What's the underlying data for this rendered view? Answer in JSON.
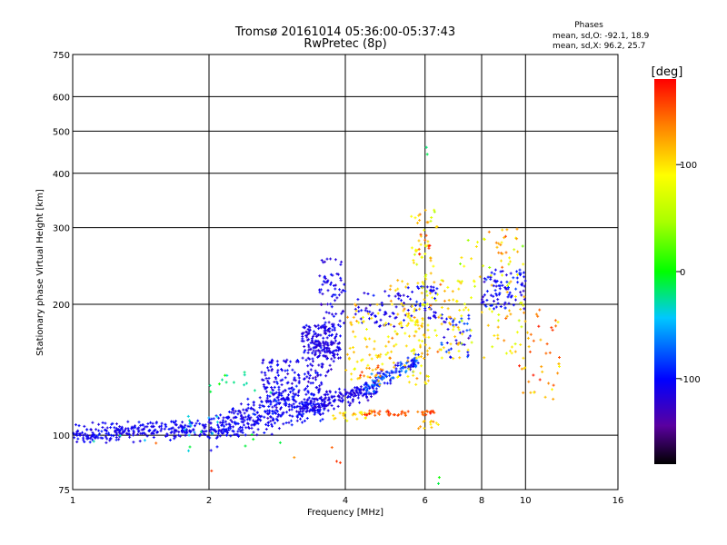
{
  "chart_data": {
    "type": "scatter",
    "title": "Tromsø 20161014 05:36:00-05:37:43",
    "subtitle": "RwPretec (8p)",
    "xlabel": "Frequency [MHz]",
    "ylabel": "Stationary phase Virtual Height [km]",
    "xscale": "log2",
    "yscale": "log",
    "xlim": [
      1,
      16
    ],
    "ylim": [
      75,
      750
    ],
    "x_ticks": [
      1,
      2,
      4,
      6,
      8,
      10,
      16
    ],
    "x_tick_labels": [
      "1",
      "2",
      "4",
      "6",
      "8",
      "10",
      "16"
    ],
    "y_ticks": [
      75,
      100,
      200,
      300,
      400,
      500,
      600,
      750
    ],
    "y_tick_labels": [
      "75",
      "100",
      "200",
      "300",
      "400",
      "500",
      "600",
      "750"
    ],
    "grid": true,
    "phase_legend": {
      "title": "Phases",
      "line_o": "mean, sd,O: -92.1, 18.9",
      "line_x": "mean, sd,X:  96.2, 25.7"
    },
    "colorbar": {
      "label": "[deg]",
      "range": [
        -180,
        180
      ],
      "tick_values": [
        100,
        0,
        -100
      ],
      "tick_labels": [
        "100",
        "0",
        "-100"
      ]
    },
    "clusters": [
      {
        "kind": "band",
        "x": [
          1.0,
          2.0
        ],
        "y": [
          100,
          104
        ],
        "spread": 0.035,
        "phase": -108,
        "phase_sd": 10,
        "count": 260
      },
      {
        "kind": "band",
        "x": [
          2.0,
          3.3
        ],
        "y": [
          102,
          116
        ],
        "spread": 0.05,
        "phase": -108,
        "phase_sd": 12,
        "count": 240
      },
      {
        "kind": "band",
        "x": [
          2.6,
          3.6
        ],
        "y": [
          132,
          112
        ],
        "spread": 0.035,
        "phase": -105,
        "phase_sd": 10,
        "count": 70
      },
      {
        "kind": "band",
        "x": [
          2.1,
          2.9
        ],
        "y": [
          108,
          122
        ],
        "spread": 0.04,
        "phase": -105,
        "phase_sd": 12,
        "count": 60
      },
      {
        "kind": "band",
        "x": [
          3.2,
          4.7
        ],
        "y": [
          115,
          128
        ],
        "spread": 0.03,
        "phase": -112,
        "phase_sd": 10,
        "count": 170
      },
      {
        "kind": "band",
        "x": [
          4.4,
          5.8
        ],
        "y": [
          128,
          148
        ],
        "spread": 0.03,
        "phase": -90,
        "phase_sd": 25,
        "count": 130
      },
      {
        "kind": "blob",
        "x": [
          2.6,
          3.7
        ],
        "y": [
          120,
          150
        ],
        "phase": -110,
        "phase_sd": 12,
        "count": 150
      },
      {
        "kind": "blob",
        "x": [
          3.2,
          3.9
        ],
        "y": [
          150,
          180
        ],
        "phase": -112,
        "phase_sd": 10,
        "count": 140
      },
      {
        "kind": "blob",
        "x": [
          3.5,
          4.0
        ],
        "y": [
          175,
          235
        ],
        "phase": -110,
        "phase_sd": 12,
        "count": 60
      },
      {
        "kind": "blob",
        "x": [
          3.3,
          3.8
        ],
        "y": [
          140,
          165
        ],
        "phase": -115,
        "phase_sd": 8,
        "count": 50
      },
      {
        "kind": "blob",
        "x": [
          4.2,
          5.5
        ],
        "y": [
          175,
          215
        ],
        "phase": -110,
        "phase_sd": 12,
        "count": 60
      },
      {
        "kind": "blob",
        "x": [
          5.5,
          6.4
        ],
        "y": [
          185,
          220
        ],
        "phase": -105,
        "phase_sd": 15,
        "count": 40
      },
      {
        "kind": "blob",
        "x": [
          6.5,
          7.6
        ],
        "y": [
          150,
          190
        ],
        "phase": -100,
        "phase_sd": 20,
        "count": 40
      },
      {
        "kind": "blob",
        "x": [
          8.0,
          10.0
        ],
        "y": [
          195,
          240
        ],
        "phase": -105,
        "phase_sd": 15,
        "count": 90
      },
      {
        "kind": "blob",
        "x": [
          3.4,
          4.0
        ],
        "y": [
          245,
          255
        ],
        "phase": -110,
        "phase_sd": 8,
        "count": 8
      },
      {
        "kind": "blob",
        "x": [
          1.75,
          2.1
        ],
        "y": [
          100,
          112
        ],
        "phase": -40,
        "phase_sd": 15,
        "count": 12
      },
      {
        "kind": "blob",
        "x": [
          2.0,
          2.8
        ],
        "y": [
          125,
          140
        ],
        "phase": -25,
        "phase_sd": 20,
        "count": 14
      },
      {
        "kind": "blob",
        "x": [
          4.0,
          6.2
        ],
        "y": [
          130,
          200
        ],
        "phase": 100,
        "phase_sd": 20,
        "count": 120
      },
      {
        "kind": "blob",
        "x": [
          5.0,
          7.2
        ],
        "y": [
          150,
          230
        ],
        "phase": 105,
        "phase_sd": 25,
        "count": 110
      },
      {
        "kind": "blob",
        "x": [
          5.5,
          6.4
        ],
        "y": [
          230,
          330
        ],
        "phase": 95,
        "phase_sd": 30,
        "count": 40
      },
      {
        "kind": "blob",
        "x": [
          7.0,
          10.0
        ],
        "y": [
          150,
          300
        ],
        "phase": 90,
        "phase_sd": 35,
        "count": 90
      },
      {
        "kind": "blob",
        "x": [
          9.5,
          12.0
        ],
        "y": [
          120,
          200
        ],
        "phase": 130,
        "phase_sd": 30,
        "count": 45
      },
      {
        "kind": "blob",
        "x": [
          3.7,
          4.6
        ],
        "y": [
          107,
          114
        ],
        "phase": 100,
        "phase_sd": 15,
        "count": 25
      },
      {
        "kind": "blob",
        "x": [
          4.4,
          6.3
        ],
        "y": [
          111,
          114
        ],
        "phase": 155,
        "phase_sd": 15,
        "count": 45
      },
      {
        "kind": "blob",
        "x": [
          5.8,
          6.5
        ],
        "y": [
          103,
          108
        ],
        "phase": 110,
        "phase_sd": 20,
        "count": 12
      },
      {
        "kind": "blob",
        "x": [
          4.1,
          4.9
        ],
        "y": [
          135,
          145
        ],
        "phase": 135,
        "phase_sd": 20,
        "count": 15
      },
      {
        "kind": "blob",
        "x": [
          5.8,
          6.2
        ],
        "y": [
          255,
          290
        ],
        "phase": 150,
        "phase_sd": 20,
        "count": 10
      },
      {
        "kind": "blob",
        "x": [
          8.5,
          9.3
        ],
        "y": [
          255,
          300
        ],
        "phase": 130,
        "phase_sd": 25,
        "count": 12
      },
      {
        "kind": "blob",
        "x": [
          1.0,
          3.0
        ],
        "y": [
          90,
          102
        ],
        "phase": -15,
        "phase_sd": 20,
        "count": 10
      },
      {
        "kind": "blob",
        "x": [
          1.2,
          4.0
        ],
        "y": [
          76,
          96
        ],
        "phase": 150,
        "phase_sd": 20,
        "count": 6
      },
      {
        "kind": "blob",
        "x": [
          5.9,
          6.1
        ],
        "y": [
          430,
          460
        ],
        "phase": -10,
        "phase_sd": 10,
        "count": 2
      },
      {
        "kind": "blob",
        "x": [
          6.2,
          6.5
        ],
        "y": [
          76,
          80
        ],
        "phase": -10,
        "phase_sd": 10,
        "count": 2
      }
    ]
  }
}
